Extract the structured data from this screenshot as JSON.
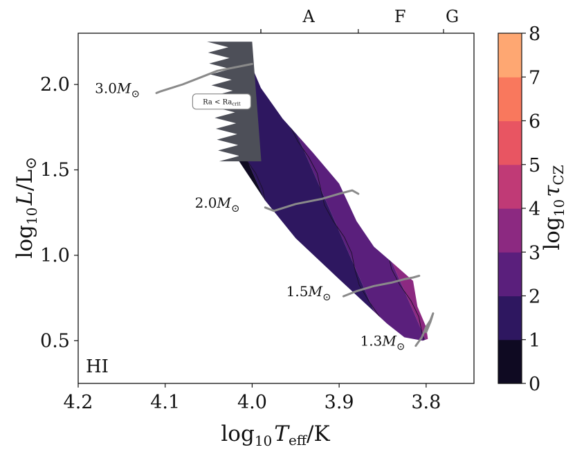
{
  "chart_data": {
    "type": "heatmap",
    "xlabel": {
      "pre": "log",
      "sub": "10",
      "italic": "T",
      "italic_sub": "eff",
      "post": "/K"
    },
    "ylabel": {
      "pre": "log",
      "sub": "10",
      "italic": "L",
      "post": "/L",
      "sun": "⊙"
    },
    "colorbar_label": {
      "pre": "log",
      "sub": "10",
      "italic": "τ",
      "italic_sub": "CZ"
    },
    "xlim": [
      4.2,
      3.745
    ],
    "ylim": [
      0.25,
      2.3
    ],
    "x_ticks": [
      "4.2",
      "4.1",
      "4.0",
      "3.9",
      "3.8"
    ],
    "x_tick_values": [
      4.2,
      4.1,
      4.0,
      3.9,
      3.8
    ],
    "y_ticks": [
      "0.5",
      "1.0",
      "1.5",
      "2.0"
    ],
    "y_tick_values": [
      0.5,
      1.0,
      1.5,
      2.0
    ],
    "spectral_types": [
      {
        "label": "A",
        "boundary_teff": 3.99,
        "center_teff": 3.935
      },
      {
        "label": "F",
        "boundary_teff": 3.878,
        "center_teff": 3.83
      },
      {
        "label": "G",
        "boundary_teff": 3.78,
        "center_teff": 3.77
      }
    ],
    "colorbar": {
      "levels": [
        0,
        1,
        2,
        3,
        4,
        5,
        6,
        7,
        8
      ],
      "colors": [
        "#0f0a22",
        "#2e1760",
        "#5a1f7c",
        "#8c2981",
        "#c03a76",
        "#e85562",
        "#f9785d",
        "#fea772",
        "#fde2a2"
      ]
    },
    "region_label": "HI",
    "unstable_label": {
      "text": "Ra < Ra",
      "sub": "crit",
      "teff": 4.035,
      "logL": 1.9
    },
    "tracks": [
      {
        "mass": "3.0",
        "teff": [
          4.11,
          4.105,
          4.08,
          4.06,
          4.04,
          4.02,
          4.0
        ],
        "logL": [
          1.95,
          1.96,
          2.0,
          2.04,
          2.08,
          2.1,
          2.12
        ],
        "label_teff": 4.155,
        "label_logL": 1.95
      },
      {
        "mass": "2.0",
        "teff": [
          3.985,
          3.975,
          3.95,
          3.92,
          3.9,
          3.885,
          3.878
        ],
        "logL": [
          1.28,
          1.26,
          1.3,
          1.33,
          1.36,
          1.38,
          1.36
        ],
        "label_teff": 4.04,
        "label_logL": 1.28
      },
      {
        "mass": "1.5",
        "teff": [
          3.895,
          3.88,
          3.86,
          3.84,
          3.825,
          3.815,
          3.808
        ],
        "logL": [
          0.76,
          0.79,
          0.82,
          0.84,
          0.86,
          0.87,
          0.88
        ],
        "label_teff": 3.935,
        "label_logL": 0.76
      },
      {
        "mass": "1.3",
        "teff": [
          3.812,
          3.805,
          3.8,
          3.795,
          3.792,
          3.795,
          3.8
        ],
        "logL": [
          0.47,
          0.52,
          0.58,
          0.62,
          0.66,
          0.61,
          0.55
        ],
        "label_teff": 3.85,
        "label_logL": 0.47
      }
    ],
    "track_suffix": "M",
    "sun_symbol": "⊙"
  }
}
